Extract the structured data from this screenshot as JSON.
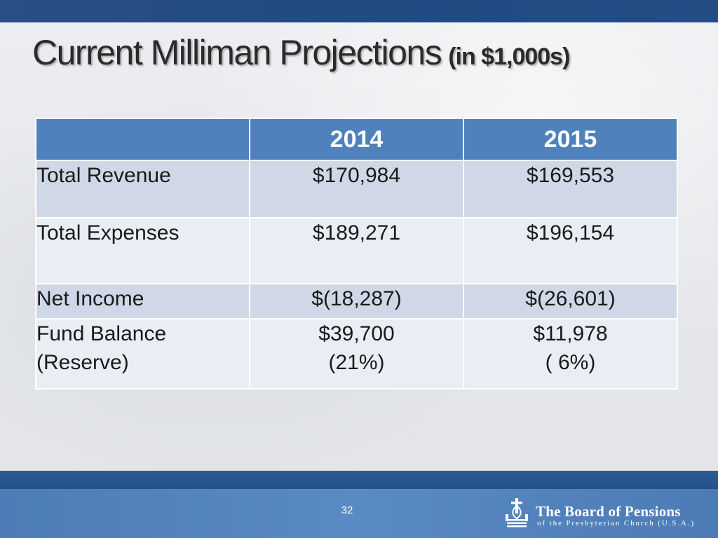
{
  "slide": {
    "title": "Current Milliman Projections",
    "title_suffix": "(in $1,000s)",
    "page_number": "32"
  },
  "table": {
    "headers": [
      "",
      "2014",
      "2015"
    ],
    "rows": [
      {
        "label": [
          "Total Revenue"
        ],
        "col2014": [
          "$170,984"
        ],
        "col2015": [
          "$169,553"
        ]
      },
      {
        "label": [
          "Total Expenses"
        ],
        "col2014": [
          "$189,271"
        ],
        "col2015": [
          "$196,154"
        ]
      },
      {
        "label": [
          "Net Income"
        ],
        "col2014": [
          "$(18,287)"
        ],
        "col2015": [
          "$(26,601)"
        ]
      },
      {
        "label": [
          "Fund Balance",
          "(Reserve)"
        ],
        "col2014": [
          "$39,700",
          "(21%)"
        ],
        "col2015": [
          "$11,978",
          "( 6%)"
        ]
      }
    ]
  },
  "footer": {
    "logo_name": "The Board of Pensions",
    "logo_subtitle": "of the Presbyterian Church (U.S.A.)",
    "logo_icon": "presbyterian-seal-icon"
  },
  "colors": {
    "header_fill": "#4f81bd",
    "row_dark": "#d0d8e8",
    "row_light": "#e9edf4",
    "top_bar": "#1f4a82",
    "bottom_bar": "#2c5a95"
  }
}
